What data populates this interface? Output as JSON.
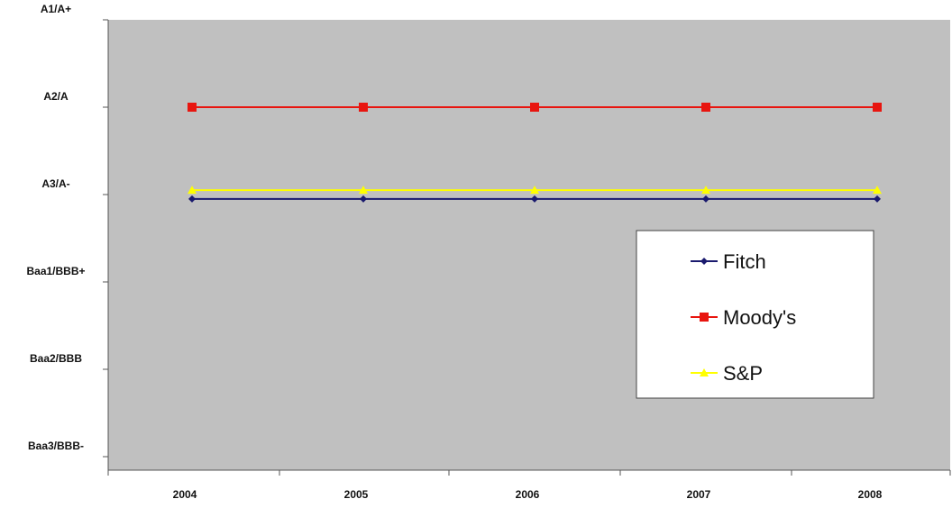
{
  "chart_data": {
    "type": "line",
    "title": "",
    "xlabel": "",
    "ylabel": "",
    "x": [
      "2004",
      "2005",
      "2006",
      "2007",
      "2008"
    ],
    "y_categories": [
      "Baa3/BBB-",
      "Baa2/BBB",
      "Baa1/BBB+",
      "A3/A-",
      "A2/A",
      "A1/A+"
    ],
    "series": [
      {
        "name": "Fitch",
        "color": "#1a1a6e",
        "marker": "diamond",
        "values": [
          2.95,
          2.95,
          2.95,
          2.95,
          2.95
        ]
      },
      {
        "name": "Moody's",
        "color": "#e8150f",
        "marker": "square",
        "values": [
          4.0,
          4.0,
          4.0,
          4.0,
          4.0
        ]
      },
      {
        "name": "S&P",
        "color": "#ffff00",
        "marker": "triangle",
        "values": [
          3.05,
          3.05,
          3.05,
          3.05,
          3.05
        ]
      }
    ],
    "ylim": [
      0,
      5
    ],
    "grid": false,
    "plot_background": "#c0c0c0",
    "legend_position": "right"
  }
}
